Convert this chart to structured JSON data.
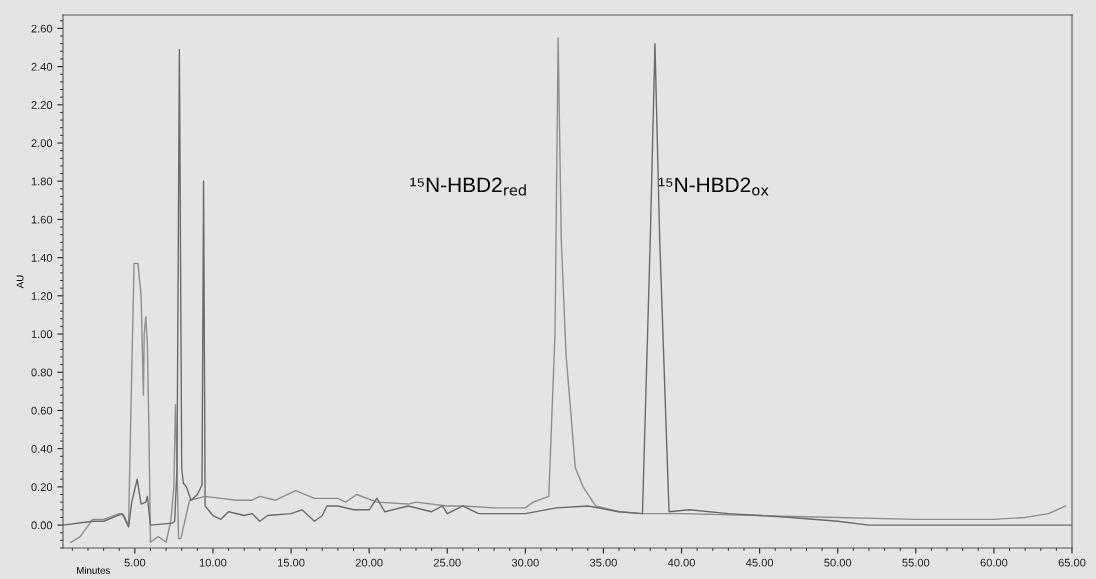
{
  "chart_data": {
    "type": "line",
    "xlabel": "Minutes",
    "ylabel": "AU",
    "xlim": [
      0.4,
      65.0
    ],
    "ylim": [
      -0.12,
      2.67
    ],
    "xticks": [
      {
        "value": 5,
        "label": "5.00"
      },
      {
        "value": 10,
        "label": "10.00"
      },
      {
        "value": 15,
        "label": "15.00"
      },
      {
        "value": 20,
        "label": "20.00"
      },
      {
        "value": 25,
        "label": "25.00"
      },
      {
        "value": 30,
        "label": "30.00"
      },
      {
        "value": 35,
        "label": "35.00"
      },
      {
        "value": 40,
        "label": "40.00"
      },
      {
        "value": 45,
        "label": "45.00"
      },
      {
        "value": 50,
        "label": "50.00"
      },
      {
        "value": 55,
        "label": "55.00"
      },
      {
        "value": 60,
        "label": "60.00"
      },
      {
        "value": 65,
        "label": "65.00"
      }
    ],
    "yticks": [
      {
        "value": 0,
        "label": "0.00"
      },
      {
        "value": 0.2,
        "label": "0.20"
      },
      {
        "value": 0.4,
        "label": "0.40"
      },
      {
        "value": 0.6,
        "label": "0.60"
      },
      {
        "value": 0.8,
        "label": "0.80"
      },
      {
        "value": 1.0,
        "label": "1.00"
      },
      {
        "value": 1.2,
        "label": "1.20"
      },
      {
        "value": 1.4,
        "label": "1.40"
      },
      {
        "value": 1.6,
        "label": "1.60"
      },
      {
        "value": 1.8,
        "label": "1.80"
      },
      {
        "value": 2.0,
        "label": "2.00"
      },
      {
        "value": 2.2,
        "label": "2.20"
      },
      {
        "value": 2.4,
        "label": "2.40"
      },
      {
        "value": 2.6,
        "label": "2.60"
      }
    ],
    "grid": false,
    "legend": false,
    "marker": "none",
    "line_style": "solid",
    "series": [
      {
        "color": "#8e8e8e",
        "x": [
          0.9,
          1.5,
          2.3,
          3.0,
          4.0,
          4.3,
          4.6,
          4.8,
          4.95,
          5.2,
          5.4,
          5.55,
          5.6,
          5.7,
          5.8,
          5.9,
          6.0,
          6.5,
          7.0,
          7.3,
          7.5,
          7.6,
          7.7,
          7.8,
          7.95,
          8.5,
          9.0,
          9.5,
          10.5,
          11.5,
          12.5,
          13.0,
          14.0,
          15.3,
          16.5,
          18.0,
          18.5,
          19.2,
          20.5,
          22.5,
          23.0,
          25.0,
          26.0,
          28.0,
          30.0,
          30.5,
          31.5,
          31.9,
          32.1,
          32.3,
          32.6,
          33.2,
          33.7,
          34.5,
          36.0,
          37.5,
          40.0,
          45.0,
          50.0,
          55.0,
          60.0,
          62.0,
          63.5,
          64.6
        ],
        "values": [
          -0.09,
          -0.06,
          0.03,
          0.03,
          0.06,
          0.05,
          0.0,
          0.8,
          1.37,
          1.37,
          1.2,
          0.68,
          1.0,
          1.09,
          0.95,
          0.5,
          -0.09,
          -0.06,
          -0.09,
          0.02,
          0.2,
          0.63,
          0.3,
          -0.07,
          -0.07,
          0.13,
          0.14,
          0.15,
          0.14,
          0.13,
          0.13,
          0.15,
          0.13,
          0.18,
          0.14,
          0.14,
          0.12,
          0.16,
          0.12,
          0.11,
          0.12,
          0.1,
          0.1,
          0.09,
          0.09,
          0.12,
          0.15,
          1.0,
          2.55,
          1.5,
          0.9,
          0.3,
          0.2,
          0.1,
          0.07,
          0.06,
          0.06,
          0.05,
          0.04,
          0.03,
          0.03,
          0.04,
          0.06,
          0.1
        ]
      },
      {
        "color": "#6a6a6a",
        "x": [
          0.4,
          2.3,
          3.0,
          4.2,
          4.6,
          4.8,
          5.15,
          5.4,
          5.7,
          5.8,
          6.0,
          7.4,
          7.55,
          7.7,
          7.85,
          8.0,
          8.1,
          8.3,
          8.6,
          9.0,
          9.3,
          9.4,
          9.5,
          10.0,
          10.5,
          11.0,
          12.0,
          12.5,
          13.0,
          13.5,
          15.0,
          15.7,
          16.5,
          17.0,
          17.3,
          18.0,
          19.0,
          20.0,
          20.5,
          21.0,
          22.5,
          24.0,
          24.7,
          25.0,
          26.0,
          27.0,
          30.0,
          32.0,
          34.0,
          36.0,
          37.5,
          38.0,
          38.3,
          38.6,
          39.2,
          40.5,
          43.0,
          47.0,
          50.0,
          52.0,
          65.0
        ],
        "values": [
          0.0,
          0.02,
          0.02,
          0.06,
          -0.01,
          0.12,
          0.24,
          0.11,
          0.12,
          0.15,
          0.0,
          0.01,
          0.02,
          0.3,
          2.49,
          0.3,
          0.22,
          0.2,
          0.13,
          0.16,
          0.21,
          1.8,
          0.1,
          0.05,
          0.03,
          0.07,
          0.05,
          0.06,
          0.02,
          0.05,
          0.06,
          0.08,
          0.02,
          0.05,
          0.1,
          0.1,
          0.08,
          0.08,
          0.14,
          0.07,
          0.1,
          0.07,
          0.1,
          0.06,
          0.1,
          0.06,
          0.06,
          0.09,
          0.1,
          0.07,
          0.06,
          1.5,
          2.52,
          1.5,
          0.07,
          0.08,
          0.06,
          0.04,
          0.02,
          0.0,
          0.0
        ]
      }
    ],
    "annotations": [
      "¹⁵N-HBD2$_{red}$",
      "¹⁵N-HBD2$_{ox}$"
    ]
  }
}
